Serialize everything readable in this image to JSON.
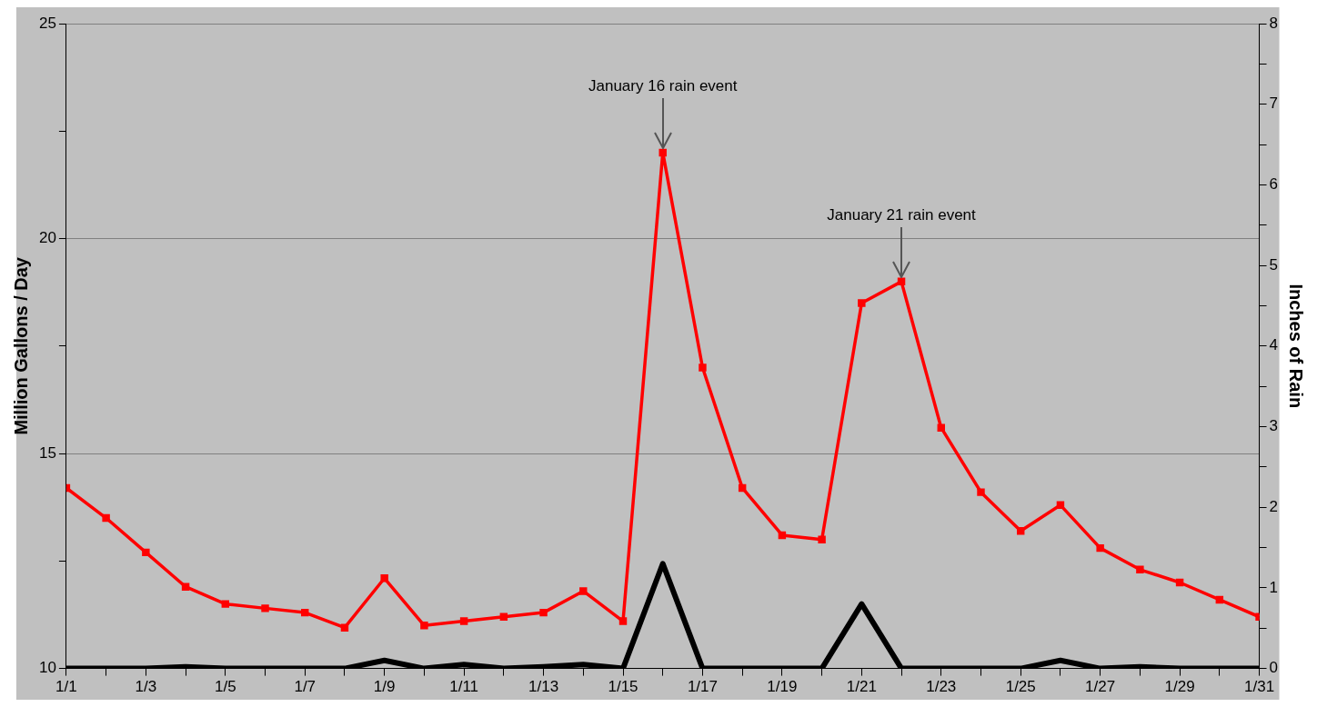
{
  "chart_data": {
    "type": "line",
    "categories": [
      "1/1",
      null,
      "1/3",
      null,
      "1/5",
      null,
      "1/7",
      null,
      "1/9",
      null,
      "1/11",
      null,
      "1/13",
      null,
      "1/15",
      null,
      "1/17",
      null,
      "1/19",
      null,
      "1/21",
      null,
      "1/23",
      null,
      "1/25",
      null,
      "1/27",
      null,
      "1/29",
      null,
      "1/31"
    ],
    "ylabel": "Million Gallons / Day",
    "y2label": "Inches of Rain",
    "ylim": [
      10,
      25
    ],
    "yticks": [
      10,
      {
        "value": 12.5,
        "label": null
      },
      15,
      {
        "value": 17.5,
        "label": null
      },
      20,
      {
        "value": 22.5,
        "label": null
      },
      25
    ],
    "y2lim": [
      0,
      8
    ],
    "y2ticks": [
      0,
      {
        "value": 0.5,
        "label": null
      },
      1,
      {
        "value": 1.5,
        "label": null
      },
      2,
      {
        "value": 2.5,
        "label": null
      },
      3,
      {
        "value": 3.5,
        "label": null
      },
      4,
      {
        "value": 4.5,
        "label": null
      },
      5,
      {
        "value": 5.5,
        "label": null
      },
      6,
      {
        "value": 6.5,
        "label": null
      },
      7,
      {
        "value": 7.5,
        "label": null
      },
      8
    ],
    "grid": "y",
    "legend": false,
    "series": [
      {
        "color": "#ff0000",
        "marker": "square",
        "values": [
          14.2,
          13.5,
          12.7,
          11.9,
          11.5,
          11.4,
          11.3,
          10.95,
          12.1,
          11.0,
          11.1,
          11.2,
          11.3,
          11.8,
          11.1,
          22.0,
          17.0,
          14.2,
          13.1,
          13.0,
          18.5,
          19.0,
          15.6,
          14.1,
          13.2,
          13.8,
          12.8,
          12.3,
          12.0,
          11.6,
          11.2
        ]
      },
      {
        "color": "#000000",
        "marker": "none",
        "axis": "y2",
        "values": [
          0,
          0,
          0,
          0.02,
          0,
          0,
          0,
          0,
          0.1,
          0,
          0.05,
          0,
          0.02,
          0.05,
          0,
          1.3,
          0,
          0,
          0,
          0,
          0.8,
          0,
          0,
          0,
          0,
          0.1,
          0,
          0.02,
          0,
          0,
          0
        ]
      }
    ],
    "annotations": [
      {
        "text": "January 16 rain event",
        "y": 22.0
      },
      {
        "text": "January 21 rain event",
        "y": 19.0
      }
    ]
  }
}
